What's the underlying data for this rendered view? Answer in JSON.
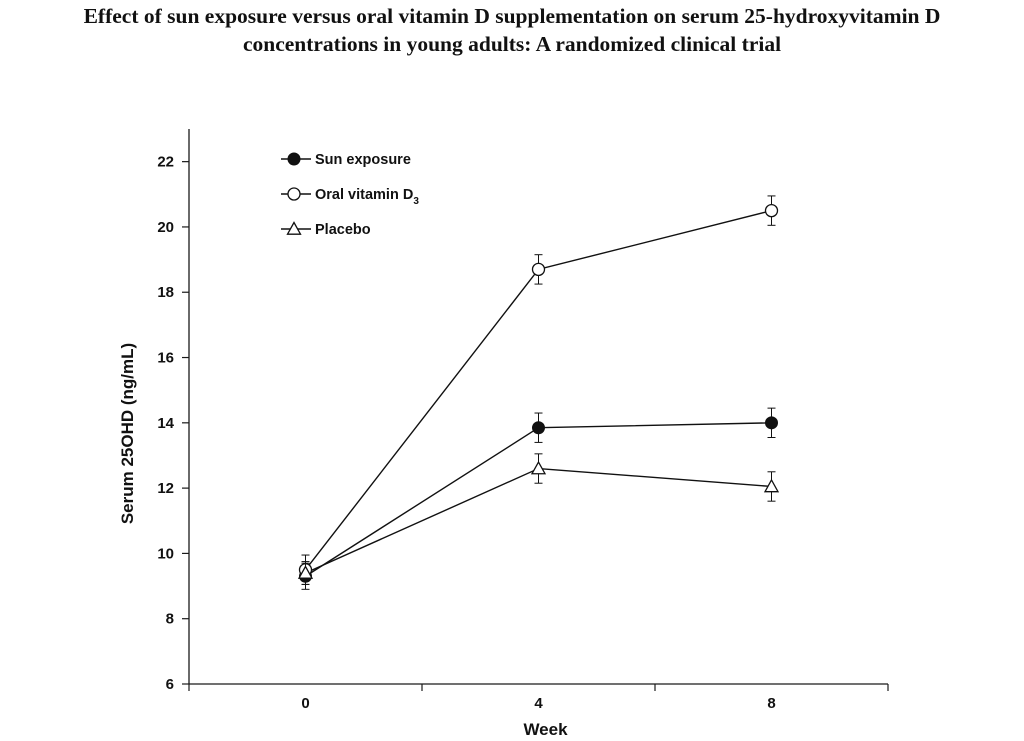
{
  "chart_data": {
    "type": "line",
    "title_line1": "Effect of sun exposure versus oral vitamin D supplementation on serum 25-hydroxyvitamin D",
    "title_line2": "concentrations in young adults: A randomized clinical trial",
    "xlabel": "Week",
    "ylabel": "Serum 25OHD (ng/mL)",
    "x": [
      0,
      4,
      8
    ],
    "x_ticks": [
      "0",
      "4",
      "8"
    ],
    "ylim": [
      6,
      23
    ],
    "y_ticks": [
      "6",
      "8",
      "10",
      "12",
      "14",
      "16",
      "18",
      "20",
      "22"
    ],
    "grid": false,
    "legend_position": "top-left",
    "series": [
      {
        "name": "Sun exposure",
        "name_sub": "",
        "marker": "filled-circle",
        "values": [
          9.3,
          13.85,
          14.0
        ],
        "error": [
          0.4,
          0.45,
          0.45
        ]
      },
      {
        "name": "Oral vitamin D",
        "name_sub": "3",
        "marker": "open-circle",
        "values": [
          9.5,
          18.7,
          20.5
        ],
        "error": [
          0.45,
          0.45,
          0.45
        ]
      },
      {
        "name": "Placebo",
        "name_sub": "",
        "marker": "open-triangle",
        "values": [
          9.4,
          12.6,
          12.05
        ],
        "error": [
          0.35,
          0.45,
          0.45
        ]
      }
    ]
  }
}
